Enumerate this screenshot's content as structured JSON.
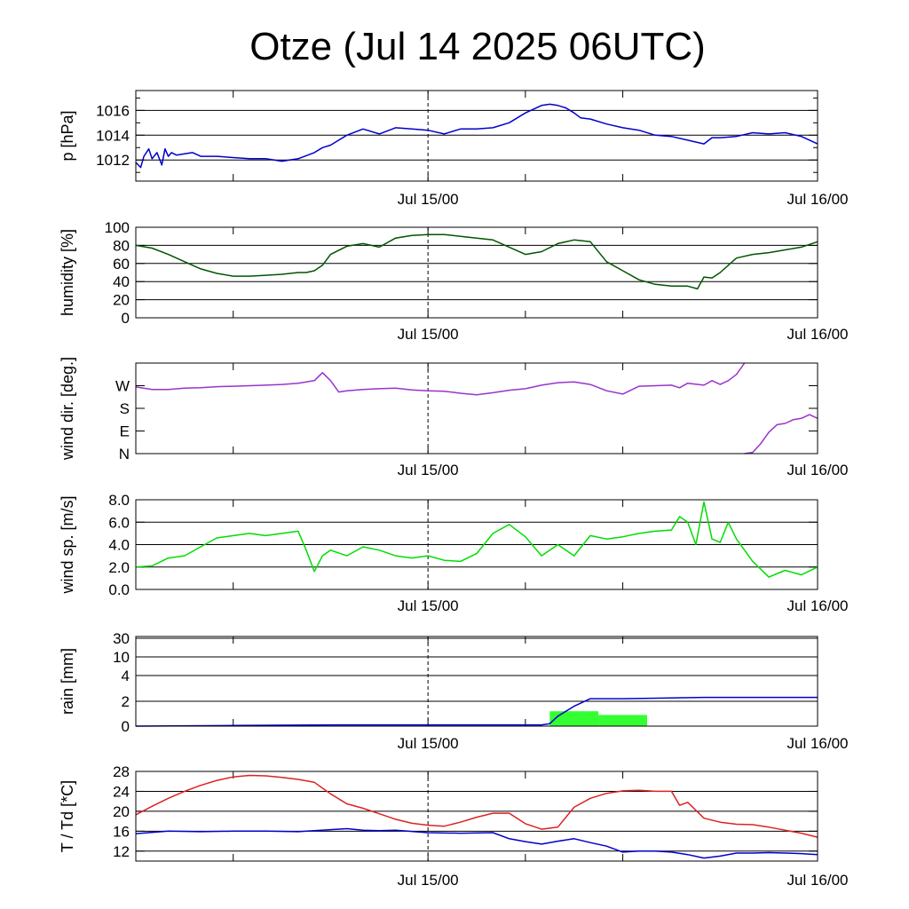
{
  "title": "Otze (Jul 14 2025 06UTC)",
  "x_labels": [
    "Jul 15/00",
    "Jul 16/00"
  ],
  "chart_data": [
    {
      "type": "line",
      "ylabel": "p [hPa]",
      "ylim": [
        1010.3,
        1017.6
      ],
      "yticks": [
        1012,
        1014,
        1016
      ],
      "ytick_labels": [
        "1012",
        "1014",
        "1016"
      ],
      "x_range_hours": [
        0,
        42
      ],
      "series": [
        {
          "color": "#0000cc",
          "x": [
            0,
            0.3,
            0.5,
            0.8,
            1,
            1.3,
            1.6,
            1.8,
            2,
            2.2,
            2.5,
            3,
            3.5,
            4,
            5,
            6,
            7,
            8,
            9,
            10,
            11,
            11.5,
            12,
            13,
            14,
            15,
            16,
            17,
            18,
            19,
            20,
            21,
            22,
            23,
            24,
            25,
            25.5,
            26,
            26.5,
            27,
            27.4,
            28,
            29,
            30,
            31,
            32,
            33,
            34,
            35,
            35.5,
            36,
            37,
            38,
            39,
            40,
            41,
            42
          ],
          "y": [
            1011.8,
            1011.4,
            1012.3,
            1012.9,
            1012.1,
            1012.6,
            1011.6,
            1012.9,
            1012.3,
            1012.6,
            1012.4,
            1012.5,
            1012.6,
            1012.3,
            1012.3,
            1012.2,
            1012.1,
            1012.1,
            1011.9,
            1012.1,
            1012.6,
            1013,
            1013.2,
            1014,
            1014.5,
            1014.1,
            1014.6,
            1014.5,
            1014.4,
            1014.1,
            1014.5,
            1014.5,
            1014.6,
            1015,
            1015.8,
            1016.4,
            1016.5,
            1016.4,
            1016.2,
            1015.8,
            1015.4,
            1015.3,
            1014.9,
            1014.6,
            1014.4,
            1014,
            1013.9,
            1013.6,
            1013.3,
            1013.8,
            1013.8,
            1013.9,
            1014.2,
            1014.1,
            1014.2,
            1013.9,
            1013.3
          ]
        }
      ]
    },
    {
      "type": "line",
      "ylabel": "humidity [%]",
      "ylim": [
        0,
        100
      ],
      "yticks": [
        0,
        20,
        40,
        60,
        80,
        100
      ],
      "ytick_labels": [
        "0",
        "20",
        "40",
        "60",
        "80",
        "100"
      ],
      "x_range_hours": [
        0,
        42
      ],
      "series": [
        {
          "color": "#005500",
          "x": [
            0,
            1,
            2,
            3,
            4,
            5,
            6,
            7,
            8,
            9,
            10,
            10.5,
            11,
            11.5,
            12,
            13,
            14,
            15,
            16,
            17,
            18,
            19,
            20,
            21,
            22,
            23,
            24,
            25,
            26,
            27,
            28,
            29,
            30,
            31,
            32,
            33,
            34,
            34.6,
            35,
            35.5,
            36,
            37,
            38,
            39,
            40,
            41,
            42
          ],
          "y": [
            80,
            77,
            70,
            62,
            54,
            49,
            46,
            46,
            47,
            48,
            50,
            50,
            52,
            58,
            70,
            79,
            82,
            78,
            88,
            91,
            92,
            92,
            90,
            88,
            86,
            78,
            70,
            73,
            82,
            86,
            84,
            62,
            52,
            42,
            37,
            35,
            35,
            32,
            45,
            44,
            50,
            66,
            70,
            72,
            75,
            78,
            84
          ]
        }
      ]
    },
    {
      "type": "line",
      "ylabel": "wind dir. [deg.]",
      "ylim": [
        0,
        360
      ],
      "yticks": [
        0,
        90,
        180,
        270
      ],
      "ytick_labels": [
        "N",
        "E",
        "S",
        "W"
      ],
      "x_range_hours": [
        0,
        42
      ],
      "series": [
        {
          "color": "#9933cc",
          "x": [
            0,
            1,
            2,
            3,
            4,
            5,
            6,
            7,
            8,
            9,
            10,
            11,
            11.5,
            12,
            12.5,
            13,
            14,
            15,
            16,
            17,
            18,
            19,
            20,
            21,
            22,
            23,
            24,
            25,
            26,
            27,
            28,
            29,
            30,
            31,
            32,
            33,
            33.5,
            34,
            35,
            35.5,
            36,
            36.5,
            37,
            37.5
          ],
          "y": [
            265,
            255,
            255,
            260,
            262,
            266,
            268,
            270,
            272,
            275,
            280,
            290,
            322,
            290,
            245,
            250,
            255,
            258,
            260,
            253,
            250,
            248,
            240,
            234,
            242,
            252,
            258,
            272,
            282,
            285,
            275,
            250,
            237,
            268,
            270,
            272,
            262,
            280,
            272,
            290,
            275,
            290,
            315,
            360
          ]
        },
        {
          "color": "#9933cc",
          "x": [
            37.5,
            38,
            38.5,
            39,
            39.5,
            40,
            40.5,
            41,
            41.5,
            42
          ],
          "y": [
            0,
            5,
            40,
            85,
            115,
            120,
            135,
            140,
            155,
            140
          ]
        }
      ]
    },
    {
      "type": "line",
      "ylabel": "wind sp. [m/s]",
      "ylim": [
        0,
        8
      ],
      "yticks": [
        0,
        2,
        4,
        6,
        8
      ],
      "ytick_labels": [
        "0.0",
        "2.0",
        "4.0",
        "6.0",
        "8.0"
      ],
      "x_range_hours": [
        0,
        42
      ],
      "series": [
        {
          "color": "#00dd00",
          "x": [
            0,
            1,
            2,
            3,
            4,
            5,
            6,
            7,
            8,
            9,
            10,
            10.5,
            11,
            11.5,
            12,
            13,
            14,
            15,
            16,
            17,
            18,
            19,
            20,
            21,
            22,
            23,
            24,
            25,
            26,
            27,
            28,
            29,
            30,
            31,
            32,
            33,
            33.5,
            34,
            34.5,
            35,
            35.5,
            36,
            36.5,
            37,
            38,
            39,
            40,
            41,
            42
          ],
          "y": [
            2,
            2.1,
            2.8,
            3,
            3.8,
            4.6,
            4.8,
            5.0,
            4.8,
            5.0,
            5.2,
            3.5,
            1.6,
            3.0,
            3.5,
            3.0,
            3.8,
            3.5,
            3.0,
            2.8,
            3.0,
            2.6,
            2.5,
            3.2,
            5.0,
            5.8,
            4.7,
            3.0,
            4.0,
            3.0,
            4.8,
            4.5,
            4.7,
            5.0,
            5.2,
            5.3,
            6.5,
            6.0,
            4.0,
            7.8,
            4.5,
            4.2,
            6.0,
            4.5,
            2.5,
            1.1,
            1.7,
            1.3,
            2.0
          ]
        }
      ]
    },
    {
      "type": "bar",
      "ylabel": "rain [mm]",
      "yticks": [
        0,
        2,
        4,
        10,
        30
      ],
      "ytick_labels": [
        "0",
        "2",
        "4",
        "10",
        "30"
      ],
      "y_scale": "nonlinear: 0, 2, 4, 10, 30 equally spaced above 2",
      "x_range_hours": [
        0,
        42
      ],
      "bars": {
        "color": "#33ff33",
        "items": [
          {
            "x0": 25.5,
            "x1": 28.5,
            "value": 1.2
          },
          {
            "x0": 28.5,
            "x1": 31.5,
            "value": 0.9
          }
        ]
      },
      "series": [
        {
          "name": "accumulated",
          "color": "#0000cc",
          "x": [
            0,
            6,
            12,
            20,
            25,
            25.5,
            26,
            27,
            28,
            29,
            30,
            35,
            42
          ],
          "y": [
            0,
            0.05,
            0.1,
            0.1,
            0.1,
            0.2,
            0.8,
            1.6,
            2.2,
            2.2,
            2.2,
            2.3,
            2.3
          ]
        }
      ]
    },
    {
      "type": "line",
      "ylabel": "T / Td [*C]",
      "ylim": [
        10,
        28
      ],
      "yticks": [
        12,
        16,
        20,
        24,
        28
      ],
      "ytick_labels": [
        "12",
        "16",
        "20",
        "24",
        "28"
      ],
      "x_range_hours": [
        0,
        42
      ],
      "series": [
        {
          "color": "#dd2222",
          "x": [
            0,
            1,
            2,
            3,
            4,
            5,
            6,
            7,
            8,
            9,
            10,
            11,
            12,
            13,
            14,
            15,
            16,
            17,
            18,
            19,
            20,
            21,
            22,
            23,
            24,
            25,
            26,
            27,
            28,
            29,
            30,
            31,
            32,
            33,
            33.5,
            34,
            35,
            36,
            37,
            38,
            39,
            40,
            41,
            42
          ],
          "y": [
            19.3,
            21.0,
            22.6,
            24.0,
            25.2,
            26.2,
            26.9,
            27.2,
            27.1,
            26.8,
            26.4,
            25.8,
            23.5,
            21.5,
            20.6,
            19.5,
            18.4,
            17.6,
            17.2,
            17.0,
            17.8,
            18.8,
            19.6,
            19.6,
            17.5,
            16.4,
            16.8,
            20.8,
            22.6,
            23.6,
            24.1,
            24.2,
            24.0,
            24.0,
            21.2,
            21.8,
            18.6,
            17.8,
            17.4,
            17.3,
            16.8,
            16.2,
            15.6,
            14.8
          ]
        },
        {
          "color": "#0000cc",
          "x": [
            0,
            2,
            4,
            6,
            8,
            10,
            11,
            12,
            13,
            14,
            15,
            16,
            18,
            20,
            22,
            23,
            24,
            25,
            26,
            27,
            28,
            29,
            30,
            31,
            32,
            33,
            34,
            35,
            36,
            37,
            38,
            39,
            40,
            41,
            42
          ],
          "y": [
            15.5,
            16.0,
            15.9,
            16.0,
            16.0,
            15.9,
            16.1,
            16.3,
            16.5,
            16.2,
            16.1,
            16.2,
            15.7,
            15.6,
            15.7,
            14.5,
            13.9,
            13.4,
            14.0,
            14.5,
            13.7,
            13.0,
            11.8,
            12.0,
            12.0,
            11.8,
            11.3,
            10.6,
            11.0,
            11.6,
            11.6,
            11.7,
            11.6,
            11.5,
            11.3
          ]
        }
      ]
    }
  ]
}
